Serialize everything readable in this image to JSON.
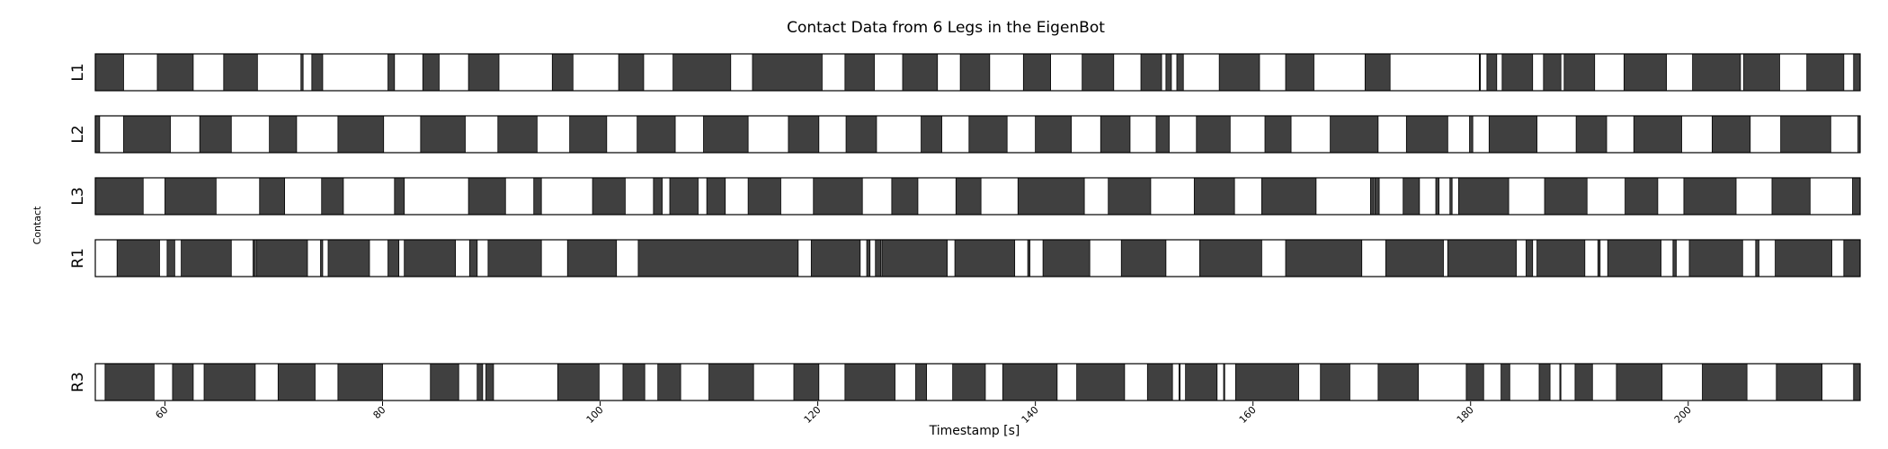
{
  "chart_data": {
    "type": "contact-timeline",
    "title": "Contact Data from 6 Legs in the EigenBot",
    "xlabel": "Timestamp [s]",
    "ylabel": "Contact",
    "xlim": [
      53.6,
      215.8
    ],
    "xticks": [
      60,
      80,
      100,
      120,
      140,
      160,
      180,
      200
    ],
    "grid": false,
    "state_colors": {
      "contact": "#404040",
      "no_contact": "#ffffff"
    },
    "rows": [
      {
        "label": "L1",
        "slot": 0,
        "contact_intervals": [
          [
            53.6,
            56.2
          ],
          [
            59.3,
            62.6
          ],
          [
            65.4,
            68.5
          ],
          [
            72.5,
            72.7
          ],
          [
            73.5,
            74.5
          ],
          [
            80.5,
            81.1
          ],
          [
            83.7,
            85.2
          ],
          [
            87.9,
            90.7
          ],
          [
            95.6,
            97.5
          ],
          [
            101.7,
            104
          ],
          [
            106.7,
            112
          ],
          [
            114,
            120.4
          ],
          [
            122.5,
            125.2
          ],
          [
            127.8,
            131
          ],
          [
            133.1,
            135.8
          ],
          [
            138.9,
            141.4
          ],
          [
            144.3,
            147.2
          ],
          [
            149.7,
            151.6
          ],
          [
            152,
            152.5
          ],
          [
            153,
            153.6
          ],
          [
            156.9,
            160.6
          ],
          [
            163,
            165.6
          ],
          [
            170.3,
            172.6
          ],
          [
            180.8,
            180.9
          ],
          [
            181.5,
            182.4
          ],
          [
            182.9,
            185.7
          ],
          [
            186.7,
            188.3
          ],
          [
            188.6,
            191.4
          ],
          [
            194.1,
            198
          ],
          [
            200.4,
            204.8
          ],
          [
            205.1,
            208.4
          ],
          [
            210.9,
            214.3
          ],
          [
            215.2,
            215.8
          ]
        ]
      },
      {
        "label": "L2",
        "slot": 1,
        "contact_intervals": [
          [
            53.6,
            54
          ],
          [
            56.2,
            60.5
          ],
          [
            63.2,
            66.1
          ],
          [
            69.6,
            72.1
          ],
          [
            75.9,
            80.1
          ],
          [
            83.5,
            87.6
          ],
          [
            90.6,
            94.2
          ],
          [
            97.2,
            100.6
          ],
          [
            103.4,
            106.9
          ],
          [
            109.5,
            113.6
          ],
          [
            117.3,
            120.1
          ],
          [
            122.6,
            125.4
          ],
          [
            129.5,
            131.4
          ],
          [
            133.9,
            137.4
          ],
          [
            140,
            143.3
          ],
          [
            146,
            148.7
          ],
          [
            151.1,
            152.3
          ],
          [
            154.8,
            157.9
          ],
          [
            161.1,
            163.5
          ],
          [
            167.1,
            171.5
          ],
          [
            174.1,
            177.9
          ],
          [
            179.9,
            180.2
          ],
          [
            181.7,
            186.1
          ],
          [
            189.7,
            192.5
          ],
          [
            195,
            199.4
          ],
          [
            202.2,
            205.7
          ],
          [
            208.5,
            213.1
          ],
          [
            215.6,
            215.8
          ]
        ]
      },
      {
        "label": "L3",
        "slot": 2,
        "contact_intervals": [
          [
            53.6,
            58
          ],
          [
            60,
            64.7
          ],
          [
            68.7,
            71
          ],
          [
            74.4,
            76.4
          ],
          [
            81.1,
            82
          ],
          [
            87.9,
            91.3
          ],
          [
            93.9,
            94.6
          ],
          [
            99.3,
            102.3
          ],
          [
            104.9,
            105.7
          ],
          [
            106.4,
            109
          ],
          [
            109.8,
            111.5
          ],
          [
            113.6,
            116.6
          ],
          [
            119.6,
            124.1
          ],
          [
            126.8,
            129.2
          ],
          [
            132.7,
            135
          ],
          [
            138.4,
            144.5
          ],
          [
            146.7,
            150.6
          ],
          [
            154.6,
            158.3
          ],
          [
            160.8,
            165.8
          ],
          [
            170.8,
            171.1
          ],
          [
            171.2,
            171.6
          ],
          [
            173.8,
            175.3
          ],
          [
            176.8,
            177.1
          ],
          [
            178.1,
            178.3
          ],
          [
            178.9,
            183.5
          ],
          [
            186.8,
            190.7
          ],
          [
            194.2,
            197.2
          ],
          [
            199.6,
            204.4
          ],
          [
            207.7,
            211.2
          ],
          [
            215.1,
            215.8
          ]
        ]
      },
      {
        "label": "R1",
        "slot": 3,
        "contact_intervals": [
          [
            55.6,
            59.5
          ],
          [
            60.2,
            60.9
          ],
          [
            61.5,
            66.1
          ],
          [
            68.1,
            68.3
          ],
          [
            68.4,
            73.1
          ],
          [
            74.3,
            74.5
          ],
          [
            75,
            78.8
          ],
          [
            80.5,
            81.5
          ],
          [
            82,
            86.7
          ],
          [
            88,
            88.7
          ],
          [
            89.7,
            94.6
          ],
          [
            97,
            101.5
          ],
          [
            103.5,
            118.2
          ],
          [
            119.4,
            123.9
          ],
          [
            124.5,
            124.8
          ],
          [
            125.3,
            125.8
          ],
          [
            125.9,
            131.9
          ],
          [
            132.6,
            138.1
          ],
          [
            139.3,
            139.5
          ],
          [
            140.7,
            145
          ],
          [
            147.9,
            152
          ],
          [
            155.1,
            160.8
          ],
          [
            163,
            170
          ],
          [
            172.2,
            177.5
          ],
          [
            177.9,
            184.2
          ],
          [
            185.1,
            185.7
          ],
          [
            186.1,
            190.5
          ],
          [
            191.7,
            191.9
          ],
          [
            192.6,
            197.5
          ],
          [
            198.6,
            198.9
          ],
          [
            200.1,
            205
          ],
          [
            206.2,
            206.5
          ],
          [
            208,
            213.2
          ],
          [
            214.3,
            215.8
          ]
        ]
      },
      {
        "label": "R3",
        "slot": 5,
        "contact_intervals": [
          [
            54.5,
            59
          ],
          [
            60.7,
            62.6
          ],
          [
            63.6,
            68.3
          ],
          [
            70.4,
            73.8
          ],
          [
            75.9,
            80
          ],
          [
            84.4,
            87
          ],
          [
            88.7,
            89.2
          ],
          [
            89.5,
            90.2
          ],
          [
            96.1,
            99.9
          ],
          [
            102.1,
            104.1
          ],
          [
            105.3,
            107.4
          ],
          [
            110,
            114.1
          ],
          [
            117.8,
            120.1
          ],
          [
            122.5,
            127.1
          ],
          [
            129,
            130
          ],
          [
            132.4,
            135.4
          ],
          [
            137,
            142
          ],
          [
            143.8,
            148.2
          ],
          [
            150.3,
            152.6
          ],
          [
            153.2,
            153.3
          ],
          [
            153.8,
            156.7
          ],
          [
            157.3,
            157.4
          ],
          [
            158.4,
            164.2
          ],
          [
            166.2,
            168.9
          ],
          [
            171.5,
            175.2
          ],
          [
            179.6,
            181.2
          ],
          [
            182.8,
            183.6
          ],
          [
            186.3,
            187.3
          ],
          [
            188.2,
            188.3
          ],
          [
            189.6,
            191.2
          ],
          [
            193.4,
            197.6
          ],
          [
            201.3,
            205.4
          ],
          [
            208.1,
            212.3
          ],
          [
            215.2,
            215.8
          ]
        ]
      }
    ]
  }
}
